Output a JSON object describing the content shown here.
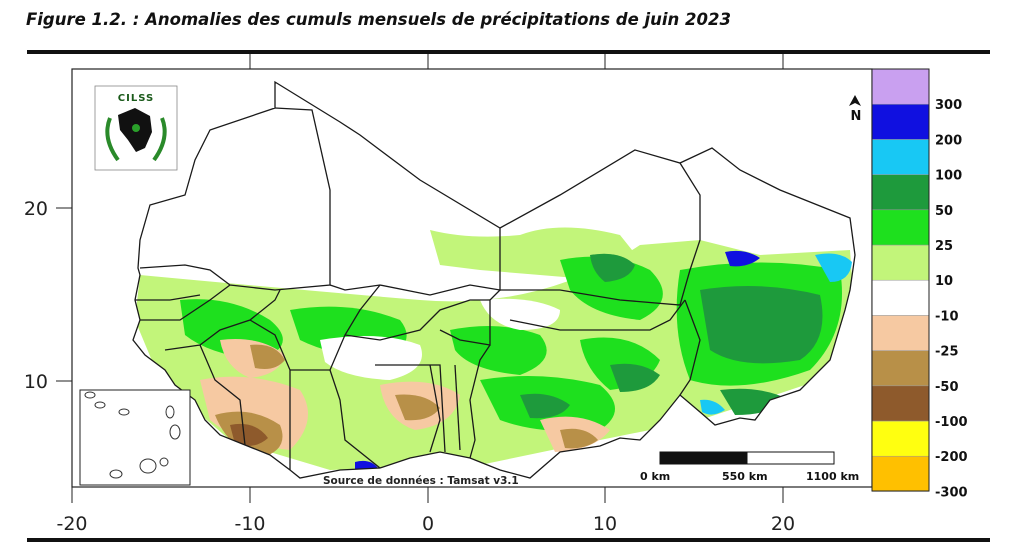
{
  "figure": {
    "title": "Figure 1.2. : Anomalies des cumuls mensuels de précipitations de juin 2023"
  },
  "map": {
    "source": "Source de données : Tamsat v3.1",
    "logo_text": "CILSS",
    "north_arrow": "N",
    "x_axis": {
      "ticks": [
        "-20",
        "-10",
        "0",
        "10",
        "20"
      ]
    },
    "y_axis": {
      "ticks": [
        "20",
        "10"
      ]
    },
    "scale_bar": {
      "labels": [
        "0 km",
        "550 km",
        "1100 km"
      ]
    }
  },
  "legend": {
    "classes": [
      {
        "label": "",
        "color": "#c9a0f0"
      },
      {
        "label": "300",
        "color": "#1010e0"
      },
      {
        "label": "200",
        "color": "#18c8f4"
      },
      {
        "label": "100",
        "color": "#1e9a3c"
      },
      {
        "label": "50",
        "color": "#1ee01e"
      },
      {
        "label": "25",
        "color": "#c2f57a"
      },
      {
        "label": "10",
        "color": "#ffffff"
      },
      {
        "label": "-10",
        "color": "#f6c9a2"
      },
      {
        "label": "-25",
        "color": "#b89048"
      },
      {
        "label": "-50",
        "color": "#8e5a2c"
      },
      {
        "label": "-100",
        "color": "#ffff10"
      },
      {
        "label": "-200",
        "color": "#ffc000"
      },
      {
        "label": "-300",
        "color": ""
      }
    ]
  }
}
